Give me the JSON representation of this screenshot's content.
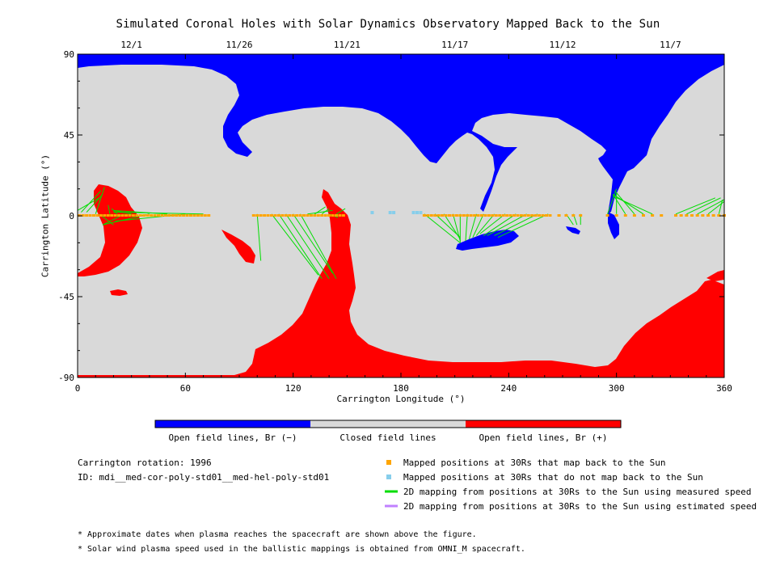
{
  "title": "Simulated Coronal Holes with Solar Dynamics Observatory Mapped Back to the Sun",
  "chart_data": {
    "type": "heatmap",
    "xlabel": "Carrington Longitude (°)",
    "ylabel": "Carrington Latitude (°)",
    "xlim": [
      0,
      360
    ],
    "ylim": [
      -90,
      90
    ],
    "xticks": [
      "0",
      "60",
      "120",
      "180",
      "240",
      "300",
      "360"
    ],
    "yticks": [
      "90",
      "45",
      "0",
      "-45",
      "-90"
    ],
    "top_date_ticks": [
      {
        "label": "12/1",
        "lon": 30
      },
      {
        "label": "11/26",
        "lon": 90
      },
      {
        "label": "11/21",
        "lon": 150
      },
      {
        "label": "11/17",
        "lon": 210
      },
      {
        "label": "11/12",
        "lon": 270
      },
      {
        "label": "11/7",
        "lon": 330
      }
    ],
    "colors": {
      "open_negative": "#0000ff",
      "closed": "#d9d9d9",
      "open_positive": "#ff0000",
      "mapped": "#ffa500",
      "unmapped": "#87ceeb",
      "measured": "#00dd00",
      "estimated": "#c080ff"
    },
    "colorbar_labels": [
      "Open field lines, Br (−)",
      "Closed field lines",
      "Open field lines, Br (+)"
    ],
    "mapped_points_lon": [
      1,
      3,
      5,
      7,
      9,
      11,
      13,
      15,
      17,
      19,
      21,
      23,
      25,
      27,
      29,
      31,
      33,
      35,
      37,
      39,
      41,
      43,
      45,
      47,
      49,
      51,
      53,
      55,
      57,
      59,
      61,
      63,
      65,
      67,
      69,
      71,
      73,
      98,
      100,
      102,
      104,
      106,
      108,
      110,
      112,
      114,
      116,
      118,
      120,
      122,
      124,
      126,
      128,
      130,
      132,
      134,
      136,
      138,
      140,
      142,
      144,
      146,
      148,
      193,
      195,
      197,
      199,
      201,
      203,
      205,
      207,
      209,
      211,
      213,
      215,
      217,
      219,
      221,
      223,
      225,
      227,
      229,
      231,
      233,
      235,
      237,
      239,
      241,
      243,
      245,
      247,
      249,
      251,
      253,
      255,
      257,
      259,
      261,
      263,
      268,
      272,
      276,
      280,
      295,
      300,
      305,
      310,
      315,
      320,
      325,
      333,
      336,
      339,
      342,
      345,
      348,
      351,
      354,
      357,
      360
    ],
    "unmapped_points_lon": [
      164,
      174,
      176,
      187,
      189,
      191
    ],
    "measured_mapping_lines": [
      [
        0,
        3,
        12,
        10
      ],
      [
        2,
        2,
        13,
        14
      ],
      [
        5,
        2,
        14,
        12
      ],
      [
        10,
        1,
        15,
        16
      ],
      [
        12,
        1,
        20,
        -5
      ],
      [
        18,
        1,
        17,
        6
      ],
      [
        22,
        1,
        19,
        4
      ],
      [
        26,
        1,
        14,
        -5
      ],
      [
        30,
        1,
        20,
        3
      ],
      [
        40,
        1,
        14,
        -5
      ],
      [
        50,
        1,
        20,
        3
      ],
      [
        60,
        1,
        21,
        -3
      ],
      [
        70,
        1,
        20,
        2
      ],
      [
        100,
        1,
        102,
        -25
      ],
      [
        108,
        1,
        134,
        -33
      ],
      [
        112,
        1,
        136,
        -35
      ],
      [
        116,
        1,
        140,
        -35
      ],
      [
        120,
        1,
        142,
        -32
      ],
      [
        124,
        1,
        144,
        -35
      ],
      [
        128,
        1,
        142,
        3
      ],
      [
        132,
        1,
        138,
        5
      ],
      [
        136,
        1,
        140,
        4
      ],
      [
        140,
        1,
        145,
        -1
      ],
      [
        144,
        1,
        149,
        4
      ],
      [
        193,
        1,
        213,
        -15
      ],
      [
        199,
        1,
        213,
        -12
      ],
      [
        204,
        1,
        213,
        -13
      ],
      [
        209,
        1,
        213,
        -14
      ],
      [
        213,
        1,
        213,
        -15
      ],
      [
        217,
        1,
        216,
        -14
      ],
      [
        222,
        1,
        218,
        -13
      ],
      [
        226,
        1,
        220,
        -12
      ],
      [
        232,
        1,
        222,
        -11
      ],
      [
        238,
        1,
        224,
        -10
      ],
      [
        244,
        1,
        226,
        -11
      ],
      [
        250,
        1,
        228,
        -11
      ],
      [
        256,
        1,
        232,
        -11
      ],
      [
        262,
        1,
        234,
        -12
      ],
      [
        272,
        1,
        276,
        -5
      ],
      [
        276,
        1,
        278,
        -5
      ],
      [
        280,
        1,
        280,
        -5
      ],
      [
        295,
        1,
        300,
        15
      ],
      [
        300,
        1,
        300,
        13
      ],
      [
        305,
        1,
        298,
        12
      ],
      [
        310,
        1,
        299,
        14
      ],
      [
        315,
        1,
        298,
        12
      ],
      [
        320,
        1,
        298,
        11
      ],
      [
        333,
        1,
        355,
        10
      ],
      [
        339,
        1,
        358,
        10
      ],
      [
        345,
        1,
        360,
        9
      ],
      [
        351,
        1,
        360,
        8
      ],
      [
        357,
        1,
        359,
        9
      ]
    ],
    "info": {
      "rotation": "Carrington rotation: 1996",
      "id": "ID: mdi__med-cor-poly-std01__med-hel-poly-std01"
    },
    "legend": [
      "Mapped positions at 30Rs that map back to the Sun",
      "Mapped positions at 30Rs that do not map back to the Sun",
      "2D mapping from positions at 30Rs to the Sun using measured speed",
      "2D mapping from positions at 30Rs to the Sun using estimated speed"
    ],
    "footnotes": [
      "* Approximate dates when plasma reaches the spacecraft are shown above the figure.",
      "* Solar wind plasma speed used in the ballistic mappings is obtained from OMNI_M spacecraft."
    ]
  }
}
